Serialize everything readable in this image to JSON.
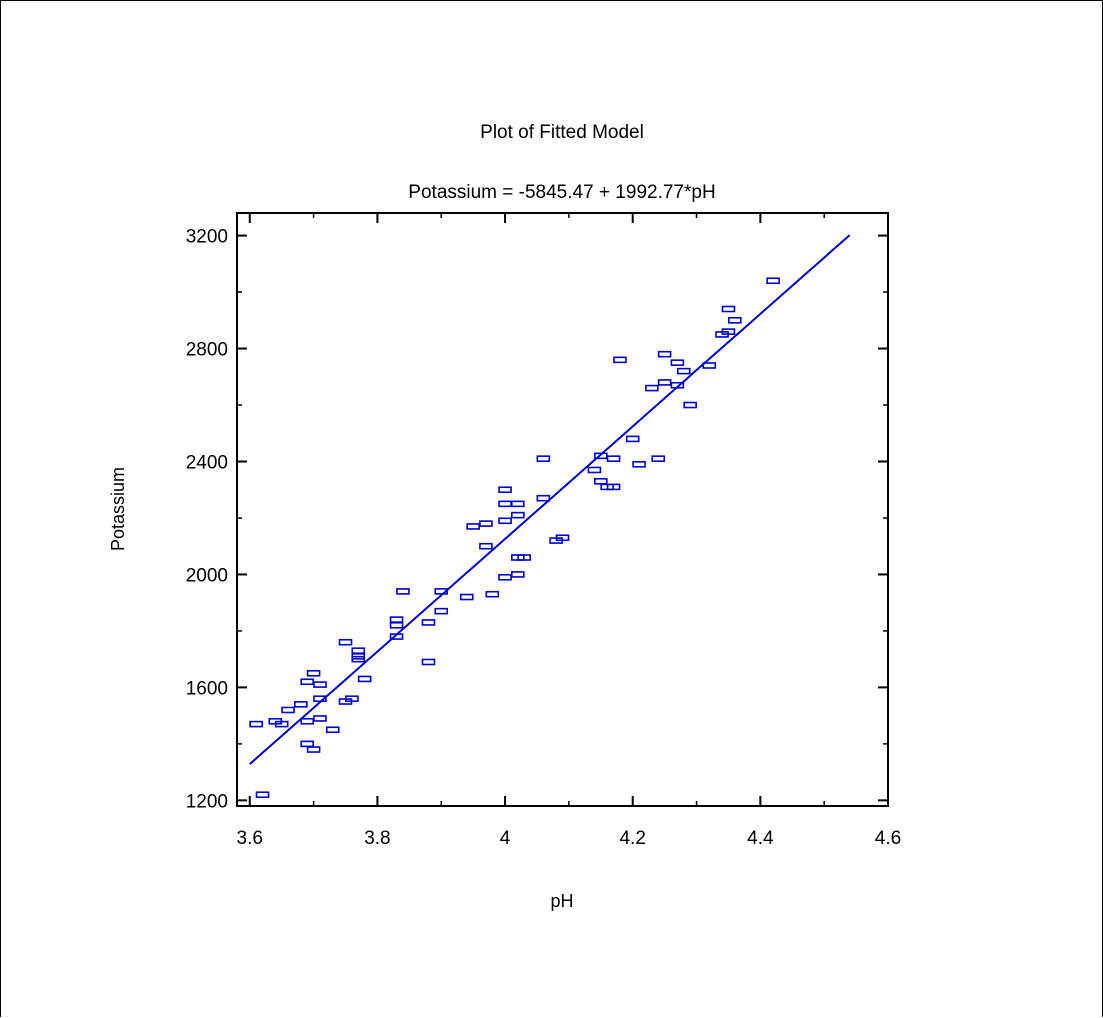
{
  "chart_data": {
    "type": "scatter",
    "title": "Plot of Fitted Model",
    "subtitle": "Potassium = -5845.47 + 1992.77*pH",
    "xlabel": "pH",
    "ylabel": "Potassium",
    "xlim": [
      3.58,
      4.6
    ],
    "ylim": [
      1180,
      3280
    ],
    "x_ticks": [
      "3.6",
      "3.8",
      "4",
      "4.2",
      "4.4",
      "4.6"
    ],
    "y_ticks": [
      "1200",
      "1600",
      "2000",
      "2400",
      "2800",
      "3200"
    ],
    "grid": false,
    "marker_color": "#0000cc",
    "line_color": "#0000cc",
    "fit": {
      "intercept": -5845.47,
      "slope": 1992.77,
      "x_range": [
        3.6,
        4.54
      ]
    },
    "points": [
      [
        3.61,
        1470
      ],
      [
        3.62,
        1220
      ],
      [
        3.64,
        1480
      ],
      [
        3.65,
        1470
      ],
      [
        3.66,
        1520
      ],
      [
        3.68,
        1540
      ],
      [
        3.69,
        1480
      ],
      [
        3.69,
        1620
      ],
      [
        3.69,
        1400
      ],
      [
        3.7,
        1650
      ],
      [
        3.7,
        1380
      ],
      [
        3.71,
        1610
      ],
      [
        3.71,
        1560
      ],
      [
        3.71,
        1490
      ],
      [
        3.73,
        1450
      ],
      [
        3.75,
        1760
      ],
      [
        3.75,
        1550
      ],
      [
        3.76,
        1560
      ],
      [
        3.77,
        1730
      ],
      [
        3.77,
        1710
      ],
      [
        3.77,
        1700
      ],
      [
        3.78,
        1630
      ],
      [
        3.83,
        1840
      ],
      [
        3.83,
        1820
      ],
      [
        3.83,
        1780
      ],
      [
        3.84,
        1940
      ],
      [
        3.88,
        1830
      ],
      [
        3.88,
        1690
      ],
      [
        3.9,
        1940
      ],
      [
        3.9,
        1870
      ],
      [
        3.94,
        1920
      ],
      [
        3.95,
        2170
      ],
      [
        3.97,
        2180
      ],
      [
        3.97,
        2100
      ],
      [
        3.98,
        1930
      ],
      [
        4.0,
        2300
      ],
      [
        4.0,
        2250
      ],
      [
        4.0,
        2190
      ],
      [
        4.0,
        1990
      ],
      [
        4.02,
        2250
      ],
      [
        4.02,
        2210
      ],
      [
        4.02,
        2060
      ],
      [
        4.02,
        2000
      ],
      [
        4.03,
        2060
      ],
      [
        4.06,
        2410
      ],
      [
        4.06,
        2270
      ],
      [
        4.08,
        2120
      ],
      [
        4.09,
        2130
      ],
      [
        4.14,
        2370
      ],
      [
        4.15,
        2420
      ],
      [
        4.15,
        2330
      ],
      [
        4.16,
        2310
      ],
      [
        4.17,
        2410
      ],
      [
        4.17,
        2310
      ],
      [
        4.18,
        2760
      ],
      [
        4.2,
        2480
      ],
      [
        4.21,
        2390
      ],
      [
        4.23,
        2660
      ],
      [
        4.24,
        2410
      ],
      [
        4.25,
        2780
      ],
      [
        4.25,
        2680
      ],
      [
        4.27,
        2750
      ],
      [
        4.27,
        2670
      ],
      [
        4.28,
        2720
      ],
      [
        4.29,
        2600
      ],
      [
        4.32,
        2740
      ],
      [
        4.34,
        2850
      ],
      [
        4.35,
        2940
      ],
      [
        4.35,
        2860
      ],
      [
        4.36,
        2900
      ],
      [
        4.42,
        3040
      ]
    ]
  }
}
